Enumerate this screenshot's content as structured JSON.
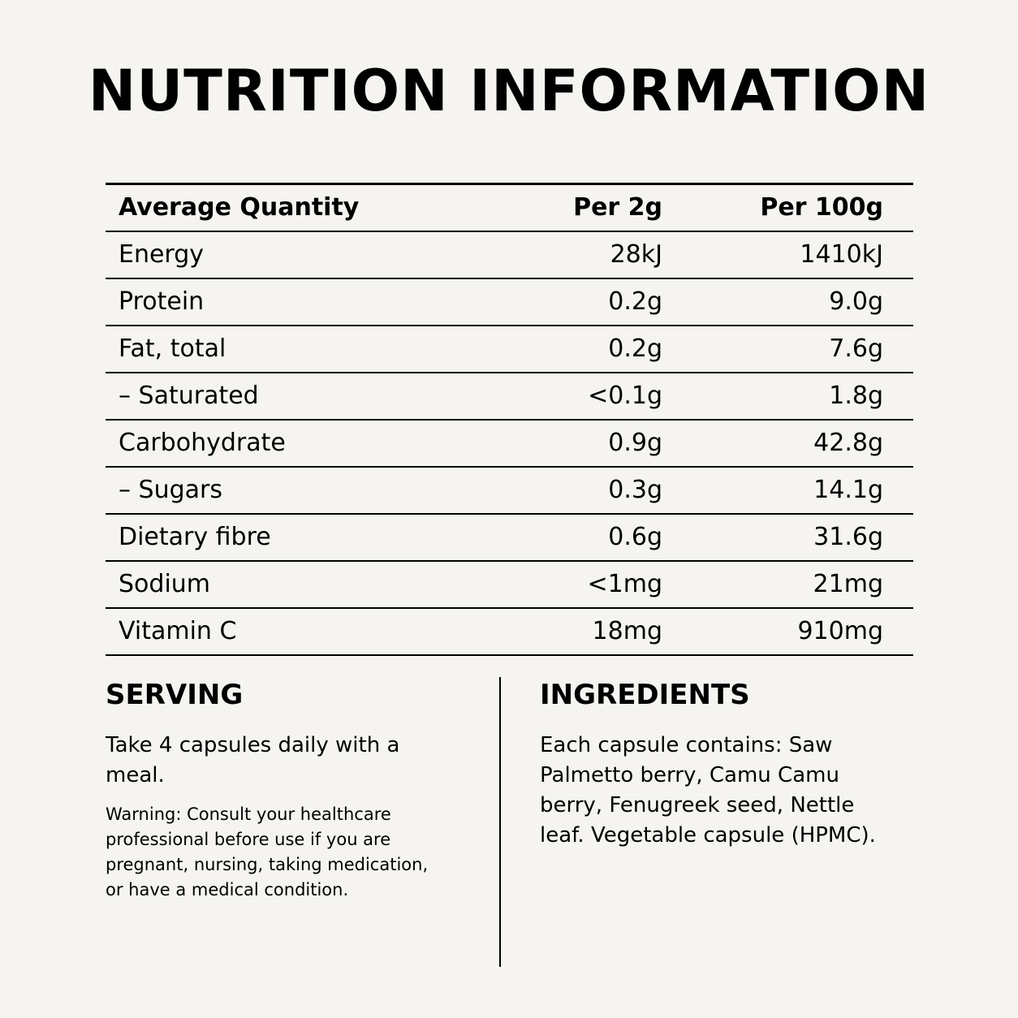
{
  "title": "NUTRITION INFORMATION",
  "table": {
    "headers": [
      "Average Quantity",
      "Per 2g",
      "Per 100g"
    ],
    "rows": [
      [
        "Energy",
        "28kJ",
        "1410kJ"
      ],
      [
        "Protein",
        "0.2g",
        "9.0g"
      ],
      [
        "Fat, total",
        "0.2g",
        "7.6g"
      ],
      [
        "– Saturated",
        "<0.1g",
        "1.8g"
      ],
      [
        "Carbohydrate",
        "0.9g",
        "42.8g"
      ],
      [
        "– Sugars",
        "0.3g",
        "14.1g"
      ],
      [
        "Dietary fibre",
        "0.6g",
        "31.6g"
      ],
      [
        "Sodium",
        "<1mg",
        "21mg"
      ],
      [
        "Vitamin C",
        "18mg",
        "910mg"
      ]
    ]
  },
  "serving": {
    "heading": "SERVING",
    "text": "Take 4 capsules daily with a meal.",
    "warning": "Warning: Consult your healthcare professional before use if you are pregnant, nursing, taking medication, or have a medical condition."
  },
  "ingredients": {
    "heading": "INGREDIENTS",
    "text": "Each capsule contains: Saw Palmetto berry, Camu Camu berry, Fenugreek seed, Nettle leaf. Vegetable capsule (HPMC)."
  }
}
